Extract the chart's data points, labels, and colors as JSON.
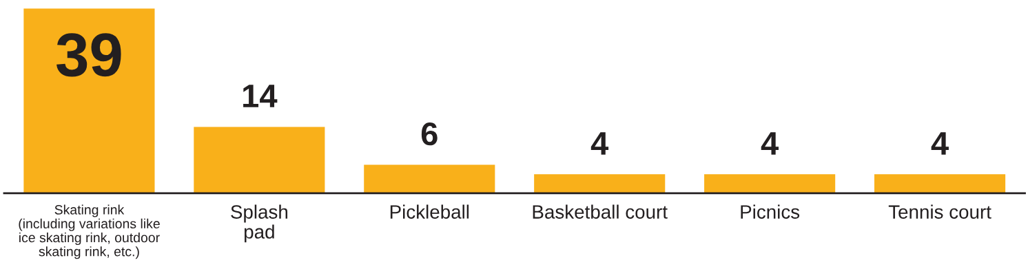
{
  "chart_data": {
    "type": "bar",
    "categories": [
      "Skating rink\n(including variations like\nice skating rink, outdoor\nskating rink, etc.)",
      "Splash\npad",
      "Pickleball",
      "Basketball court",
      "Picnics",
      "Tennis court"
    ],
    "values": [
      39,
      14,
      6,
      4,
      4,
      4
    ],
    "color": "#f9b01a",
    "data_labels": true,
    "grid": false,
    "legend": false,
    "tick_labels": "x"
  }
}
